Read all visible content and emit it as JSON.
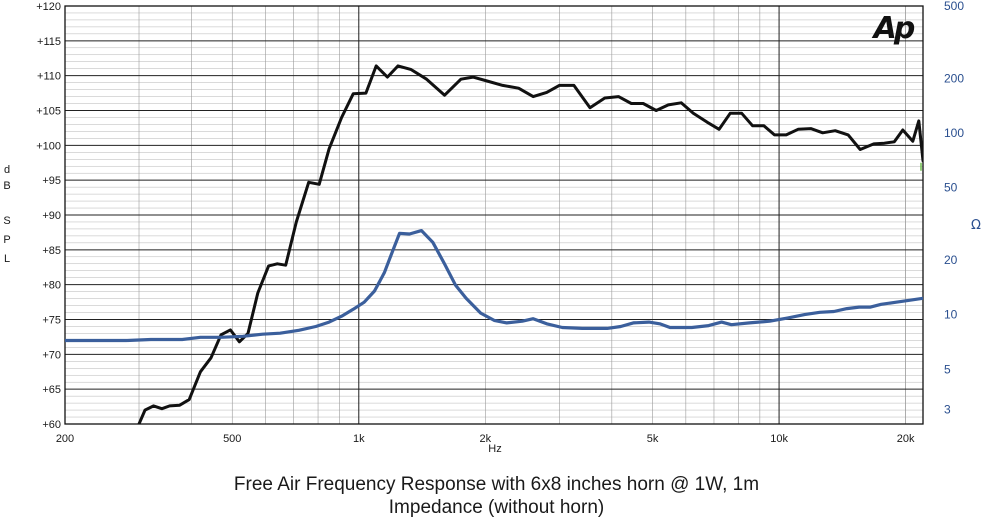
{
  "chart_data": {
    "type": "line",
    "captions": [
      "Free Air Frequency Response with 6x8 inches horn @ 1W, 1m",
      "Impedance (without horn)"
    ],
    "logo": "Ap",
    "x_axis": {
      "label": "Hz",
      "scale": "log",
      "range": [
        200,
        22000
      ],
      "tick_values": [
        200,
        500,
        1000,
        2000,
        5000,
        10000,
        20000
      ],
      "tick_labels": [
        "200",
        "500",
        "1k",
        "2k",
        "5k",
        "10k",
        "20k"
      ]
    },
    "y_left": {
      "label": "dB SPL",
      "label_chars": [
        "d",
        "B",
        "S",
        "P",
        "L"
      ],
      "range": [
        60,
        120
      ],
      "ticks": [
        {
          "v": 60,
          "t": "+60"
        },
        {
          "v": 65,
          "t": "+65"
        },
        {
          "v": 70,
          "t": "+70"
        },
        {
          "v": 75,
          "t": "+75"
        },
        {
          "v": 80,
          "t": "+80"
        },
        {
          "v": 85,
          "t": "+85"
        },
        {
          "v": 90,
          "t": "+90"
        },
        {
          "v": 95,
          "t": "+95"
        },
        {
          "v": 100,
          "t": "+100"
        },
        {
          "v": 105,
          "t": "+105"
        },
        {
          "v": 110,
          "t": "+110"
        },
        {
          "v": 115,
          "t": "+115"
        },
        {
          "v": 120,
          "t": "+120"
        }
      ]
    },
    "y_right": {
      "label": "Ω",
      "scale": "log",
      "range": [
        2.5,
        500
      ],
      "ticks": [
        {
          "v": 3,
          "t": "3"
        },
        {
          "v": 5,
          "t": "5"
        },
        {
          "v": 10,
          "t": "10"
        },
        {
          "v": 20,
          "t": "20"
        },
        {
          "v": 50,
          "t": "50"
        },
        {
          "v": 100,
          "t": "100"
        },
        {
          "v": 200,
          "t": "200"
        },
        {
          "v": 500,
          "t": "500"
        }
      ]
    },
    "grid": true,
    "series": [
      {
        "axis": "left",
        "color": "#111111",
        "points": [
          [
            300,
            60
          ],
          [
            310,
            62
          ],
          [
            325,
            62.6
          ],
          [
            340,
            62.2
          ],
          [
            355,
            62.6
          ],
          [
            375,
            62.7
          ],
          [
            395,
            63.5
          ],
          [
            420,
            67.5
          ],
          [
            445,
            69.5
          ],
          [
            470,
            72.8
          ],
          [
            495,
            73.5
          ],
          [
            520,
            71.8
          ],
          [
            545,
            73
          ],
          [
            575,
            78.8
          ],
          [
            610,
            82.7
          ],
          [
            640,
            83
          ],
          [
            670,
            82.8
          ],
          [
            710,
            89
          ],
          [
            760,
            94.7
          ],
          [
            805,
            94.4
          ],
          [
            850,
            99.5
          ],
          [
            910,
            104
          ],
          [
            970,
            107.4
          ],
          [
            1040,
            107.5
          ],
          [
            1100,
            111.4
          ],
          [
            1170,
            109.8
          ],
          [
            1240,
            111.4
          ],
          [
            1330,
            110.9
          ],
          [
            1450,
            109.5
          ],
          [
            1600,
            107.2
          ],
          [
            1750,
            109.5
          ],
          [
            1870,
            109.8
          ],
          [
            2000,
            109.3
          ],
          [
            2200,
            108.6
          ],
          [
            2400,
            108.2
          ],
          [
            2600,
            107
          ],
          [
            2800,
            107.6
          ],
          [
            3000,
            108.6
          ],
          [
            3250,
            108.6
          ],
          [
            3550,
            105.4
          ],
          [
            3850,
            106.8
          ],
          [
            4150,
            107
          ],
          [
            4450,
            106
          ],
          [
            4750,
            106
          ],
          [
            5100,
            105
          ],
          [
            5450,
            105.8
          ],
          [
            5850,
            106.1
          ],
          [
            6250,
            104.6
          ],
          [
            6750,
            103.3
          ],
          [
            7200,
            102.3
          ],
          [
            7650,
            104.6
          ],
          [
            8150,
            104.6
          ],
          [
            8650,
            102.8
          ],
          [
            9200,
            102.8
          ],
          [
            9750,
            101.5
          ],
          [
            10400,
            101.5
          ],
          [
            11100,
            102.3
          ],
          [
            11900,
            102.4
          ],
          [
            12700,
            101.8
          ],
          [
            13600,
            102.1
          ],
          [
            14600,
            101.5
          ],
          [
            15600,
            99.4
          ],
          [
            16800,
            100.2
          ],
          [
            17800,
            100.3
          ],
          [
            18800,
            100.5
          ],
          [
            19700,
            102.2
          ],
          [
            20800,
            100.6
          ],
          [
            21500,
            103.5
          ],
          [
            22000,
            97.8
          ]
        ]
      },
      {
        "axis": "right",
        "color": "#3b5f9c",
        "points": [
          [
            200,
            7.2
          ],
          [
            280,
            7.2
          ],
          [
            320,
            7.3
          ],
          [
            380,
            7.3
          ],
          [
            420,
            7.5
          ],
          [
            470,
            7.5
          ],
          [
            530,
            7.6
          ],
          [
            590,
            7.8
          ],
          [
            650,
            7.9
          ],
          [
            720,
            8.2
          ],
          [
            790,
            8.6
          ],
          [
            850,
            9.1
          ],
          [
            910,
            9.8
          ],
          [
            970,
            10.7
          ],
          [
            1030,
            11.7
          ],
          [
            1090,
            13.5
          ],
          [
            1150,
            17
          ],
          [
            1200,
            22
          ],
          [
            1250,
            28
          ],
          [
            1320,
            27.8
          ],
          [
            1410,
            29
          ],
          [
            1500,
            25
          ],
          [
            1600,
            19
          ],
          [
            1700,
            14.5
          ],
          [
            1800,
            12.3
          ],
          [
            1950,
            10.2
          ],
          [
            2100,
            9.3
          ],
          [
            2250,
            9
          ],
          [
            2450,
            9.2
          ],
          [
            2600,
            9.5
          ],
          [
            2800,
            8.9
          ],
          [
            3050,
            8.5
          ],
          [
            3400,
            8.4
          ],
          [
            3900,
            8.4
          ],
          [
            4200,
            8.6
          ],
          [
            4500,
            9
          ],
          [
            4900,
            9.1
          ],
          [
            5200,
            8.9
          ],
          [
            5500,
            8.5
          ],
          [
            6200,
            8.5
          ],
          [
            6800,
            8.7
          ],
          [
            7300,
            9.1
          ],
          [
            7700,
            8.8
          ],
          [
            8500,
            9
          ],
          [
            9500,
            9.2
          ],
          [
            10500,
            9.6
          ],
          [
            11500,
            10
          ],
          [
            12500,
            10.3
          ],
          [
            13500,
            10.4
          ],
          [
            14500,
            10.8
          ],
          [
            15500,
            11
          ],
          [
            16500,
            11
          ],
          [
            17500,
            11.4
          ],
          [
            19000,
            11.7
          ],
          [
            20500,
            12
          ],
          [
            22000,
            12.3
          ]
        ]
      }
    ],
    "marker": {
      "x": 22000,
      "y": 97.5,
      "color": "#6fbf4f"
    }
  }
}
